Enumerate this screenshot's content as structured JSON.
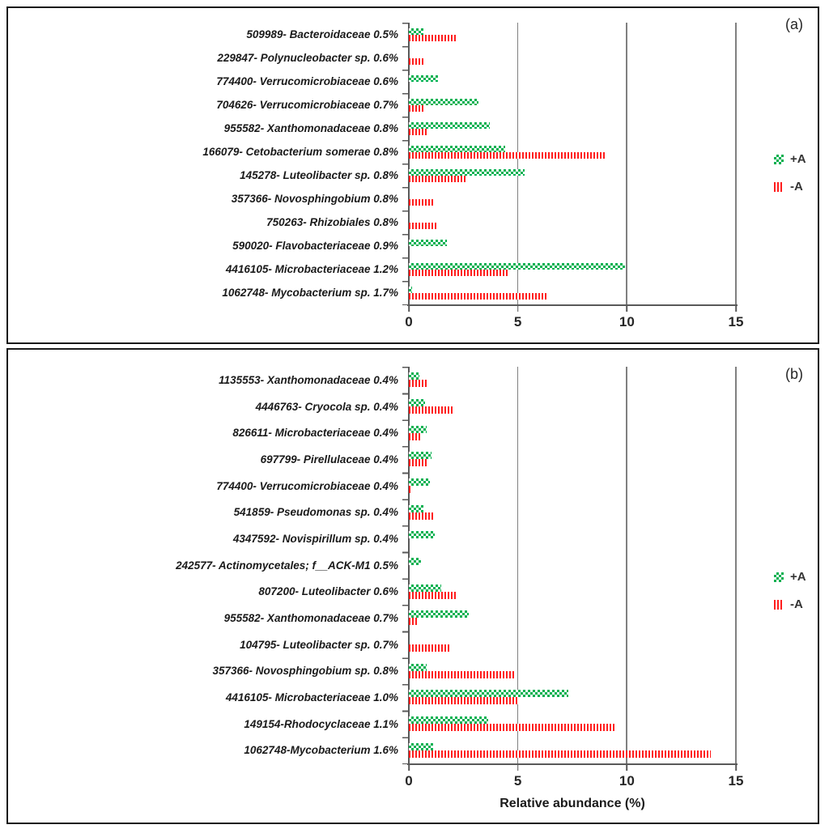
{
  "figure": {
    "background": "#ffffff",
    "border_color": "#1a1a1a",
    "gridline_color": "#808080",
    "axis_color": "#595959",
    "green_color": "#00B050",
    "red_color": "#ff1f1f"
  },
  "chart_data": [
    {
      "type": "bar",
      "orientation": "horizontal",
      "panel_label": "(a)",
      "xlabel": "",
      "xlim": [
        0,
        15
      ],
      "x_ticks": [
        0,
        5,
        10,
        15
      ],
      "grid": true,
      "legend_position": "right",
      "legend": [
        {
          "label": "+A",
          "color": "#00B050",
          "pattern": "checker"
        },
        {
          "label": "-A",
          "color": "#ff1f1f",
          "pattern": "vertical-stripes"
        }
      ],
      "categories": [
        "509989- Bacteroidaceae 0.5%",
        "229847- Polynucleobacter sp. 0.6%",
        "774400- Verrucomicrobiaceae 0.6%",
        "704626- Verrucomicrobiaceae 0.7%",
        "955582- Xanthomonadaceae 0.8%",
        "166079- Cetobacterium somerae 0.8%",
        "145278- Luteolibacter sp. 0.8%",
        "357366- Novosphingobium 0.8%",
        "750263- Rhizobiales 0.8%",
        "590020- Flavobacteriaceae 0.9%",
        "4416105- Microbacteriaceae 1.2%",
        "1062748- Mycobacterium sp. 1.7%"
      ],
      "series": [
        {
          "name": "+A",
          "values": [
            0.65,
            0,
            1.35,
            3.2,
            3.7,
            4.4,
            5.3,
            0,
            0,
            1.75,
            9.9,
            0.15
          ]
        },
        {
          "name": "-A",
          "values": [
            2.2,
            0.65,
            0,
            0.65,
            0.9,
            9.0,
            2.6,
            1.1,
            1.35,
            0,
            4.6,
            6.3
          ]
        }
      ]
    },
    {
      "type": "bar",
      "orientation": "horizontal",
      "panel_label": "(b)",
      "xlabel": "Relative abundance (%)",
      "xlim": [
        0,
        15
      ],
      "x_ticks": [
        0,
        5,
        10,
        15
      ],
      "grid": true,
      "legend_position": "right",
      "legend": [
        {
          "label": "+A",
          "color": "#00B050",
          "pattern": "checker"
        },
        {
          "label": "-A",
          "color": "#ff1f1f",
          "pattern": "vertical-stripes"
        }
      ],
      "categories": [
        "1135553- Xanthomonadaceae 0.4%",
        "4446763- Cryocola sp. 0.4%",
        "826611- Microbacteriaceae 0.4%",
        "697799- Pirellulaceae 0.4%",
        "774400- Verrucomicrobiaceae 0.4%",
        "541859- Pseudomonas sp. 0.4%",
        "4347592- Novispirillum sp. 0.4%",
        "242577- Actinomycetales; f__ACK-M1 0.5%",
        "807200- Luteolibacter 0.6%",
        "955582- Xanthomonadaceae 0.7%",
        "104795- Luteolibacter sp. 0.7%",
        "357366- Novosphingobium sp. 0.8%",
        "4416105- Microbacteriaceae 1.0%",
        "149154-Rhodocyclaceae 1.1%",
        "1062748-Mycobacterium 1.6%"
      ],
      "series": [
        {
          "name": "+A",
          "values": [
            0.5,
            0.75,
            0.8,
            1.05,
            0.95,
            0.65,
            1.2,
            0.55,
            1.5,
            2.75,
            0,
            0.8,
            7.3,
            3.65,
            1.1
          ]
        },
        {
          "name": "-A",
          "values": [
            0.85,
            2.0,
            0.55,
            0.9,
            0.15,
            1.2,
            0,
            0,
            2.2,
            0.45,
            1.9,
            4.85,
            5.0,
            9.5,
            13.85
          ]
        }
      ]
    }
  ]
}
